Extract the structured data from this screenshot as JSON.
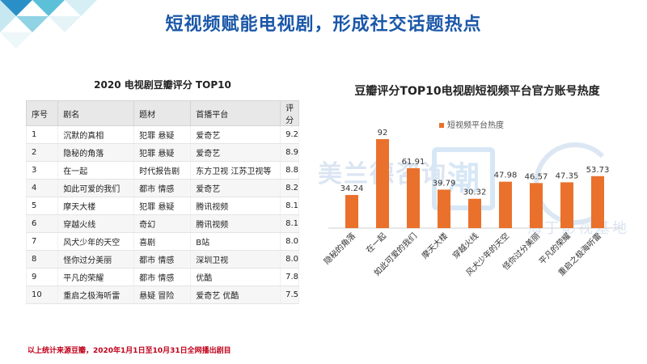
{
  "page": {
    "title": "短视频赋能电视剧，形成社交话题热点",
    "footnote": "以上统计来源豆瓣，2020年1月1日至10月31日全网播出剧目",
    "watermarks": [
      "美兰德咨询",
      "潮",
      "海丁影视基地"
    ]
  },
  "table": {
    "title": "2020 电视剧豆瓣评分 TOP10",
    "headers": [
      "序号",
      "剧名",
      "题材",
      "首播平台",
      "评分"
    ],
    "rows": [
      [
        "1",
        "沉默的真相",
        "犯罪 悬疑",
        "爱奇艺",
        "9.2"
      ],
      [
        "2",
        "隐秘的角落",
        "犯罪 悬疑",
        "爱奇艺",
        "8.9"
      ],
      [
        "3",
        "在一起",
        "时代报告剧",
        "东方卫视 江苏卫视等",
        "8.8"
      ],
      [
        "4",
        "如此可爱的我们",
        "都市 情感",
        "爱奇艺",
        "8.2"
      ],
      [
        "5",
        "摩天大楼",
        "犯罪 悬疑",
        "腾讯视频",
        "8.1"
      ],
      [
        "6",
        "穿越火线",
        "奇幻",
        "腾讯视频",
        "8.1"
      ],
      [
        "7",
        "风犬少年的天空",
        "喜剧",
        "B站",
        "8.0"
      ],
      [
        "8",
        "怪你过分美丽",
        "都市 情感",
        "深圳卫视",
        "8.0"
      ],
      [
        "9",
        "平凡的荣耀",
        "都市 情感",
        "优酷",
        "7.8"
      ],
      [
        "10",
        "重启之极海听雷",
        "悬疑 冒险",
        "爱奇艺 优酷",
        "7.5"
      ]
    ]
  },
  "chart_data": {
    "type": "bar",
    "title": "豆瓣评分TOP10电视剧短视频平台官方账号热度",
    "categories": [
      "隐秘的角落",
      "在一起",
      "如此可爱的我们",
      "摩天大楼",
      "穿越火线",
      "风犬少年的天空",
      "怪你过分美丽",
      "平凡的荣耀",
      "重启之极海听雷"
    ],
    "series": [
      {
        "name": "短视频平台热度",
        "values": [
          34.24,
          92,
          61.91,
          39.79,
          30.32,
          47.98,
          46.57,
          47.35,
          53.73
        ]
      }
    ],
    "value_labels": [
      "34.24",
      "92",
      "61.91",
      "39.79",
      "30.32",
      "47.98",
      "46.57",
      "47.35",
      "53.73"
    ],
    "ylim": [
      0,
      100
    ],
    "grid": false,
    "legend_position": "top-center",
    "bar_color": "#e9712c"
  }
}
